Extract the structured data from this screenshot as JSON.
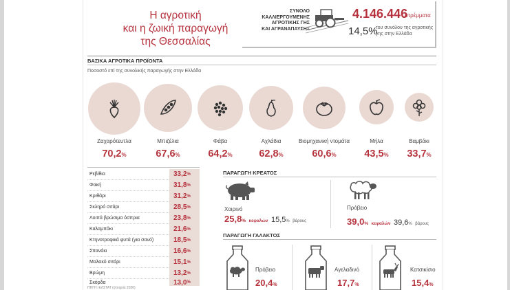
{
  "header": {
    "title_lines": [
      "Η αγροτική",
      "και η ζωική παραγωγή",
      "της Θεσσαλίας"
    ],
    "cultivated_label_lines": [
      "ΣΥΝΟΛΟ",
      "ΚΑΛΛΙΕΡΓΟΥΜΕΝΗΣ",
      "ΑΓΡΟΤΙΚΗΣ ΓΗΣ",
      "ΚΑΙ ΑΓΡΑΝΑΠΑΥΣΗΣ"
    ],
    "total_area": "4.146.446",
    "total_area_unit": "στρέμματα",
    "share": "14,5%",
    "share_note_lines": [
      "του συνόλου της αγροτικής",
      "γης στην Ελλάδα"
    ],
    "tractor_icon": "tractor-icon"
  },
  "basic_products": {
    "heading": "ΒΑΣΙΚΑ ΑΓΡΟΤΙΚΑ ΠΡΟΪΟΝΤΑ",
    "subtitle": "Ποσοστό επί της συνολικής παραγωγής στην Ελλάδα",
    "items": [
      {
        "label": "Ζαχαρότευτλα",
        "value": "70,2",
        "unit": "%",
        "icon": "sugar-beet-icon"
      },
      {
        "label": "Μπιζέλια",
        "value": "67,6",
        "unit": "%",
        "icon": "peas-icon"
      },
      {
        "label": "Φάβα",
        "value": "64,2",
        "unit": "%",
        "icon": "fava-beans-icon"
      },
      {
        "label": "Αχλάδια",
        "value": "62,8",
        "unit": "%",
        "icon": "pear-icon"
      },
      {
        "label": "Βιομηχανική ντομάτα",
        "value": "60,6",
        "unit": "%",
        "icon": "tomato-icon"
      },
      {
        "label": "Μήλα",
        "value": "43,5",
        "unit": "%",
        "icon": "apple-icon"
      },
      {
        "label": "Βαμβάκι",
        "value": "33,7",
        "unit": "%",
        "icon": "cotton-icon"
      }
    ],
    "circle_color": "#ead9d3",
    "accent_color": "#b6333e"
  },
  "crops_table": {
    "unit": "%",
    "rows": [
      {
        "name": "Ρεβίθια",
        "value": "33,2"
      },
      {
        "name": "Φακή",
        "value": "31,8"
      },
      {
        "name": "Κριθάρι",
        "value": "31,2"
      },
      {
        "name": "Σκληρό σιτάρι",
        "value": "28,5"
      },
      {
        "name": "Λοιπά βρώσιμα όσπρια",
        "value": "23,8"
      },
      {
        "name": "Καλαμπόκι",
        "value": "21,6"
      },
      {
        "name": "Κτηνοτροφικά φυτά (για σανό)",
        "value": "18,5"
      },
      {
        "name": "Σπανάκι",
        "value": "16,6"
      },
      {
        "name": "Μαλακό σιτάρι",
        "value": "15,1"
      },
      {
        "name": "Βρώμη",
        "value": "13,2"
      },
      {
        "name": "Σκόρδα",
        "value": "13,0"
      }
    ]
  },
  "meat": {
    "heading": "ΠΑΡΑΓΩΓΗ ΚΡΕΑΤΟΣ",
    "items": [
      {
        "label": "Χοιρινό",
        "heads_pct": "25,8",
        "heads_unit": "%",
        "heads_label": "κεφαλών",
        "weight_pct": "15,5",
        "weight_unit": "%",
        "weight_label": "βάρους",
        "icon": "pig-icon"
      },
      {
        "label": "Πρόβειο",
        "heads_pct": "39,0",
        "heads_unit": "%",
        "heads_label": "κεφαλών",
        "weight_pct": "39,6",
        "weight_unit": "%",
        "weight_label": "βάρους",
        "icon": "sheep-icon"
      }
    ]
  },
  "milk": {
    "heading": "ΠΑΡΑΓΩΓΗ ΓΑΛΑΚΤΟΣ",
    "items": [
      {
        "label": "Πρόβειο",
        "value": "20,4",
        "unit": "%",
        "icon": "milk-can-sheep-icon"
      },
      {
        "label": "Αγελαδινό",
        "value": "17,7",
        "unit": "%",
        "icon": "milk-can-cow-icon"
      },
      {
        "label": "Κατσικίσιο",
        "value": "15,4",
        "unit": "%",
        "icon": "milk-can-goat-icon"
      }
    ]
  },
  "footer": {
    "source": "ΠΗΓΗ: ΕΛΣΤΑΤ (στοιχεία 2020)"
  }
}
